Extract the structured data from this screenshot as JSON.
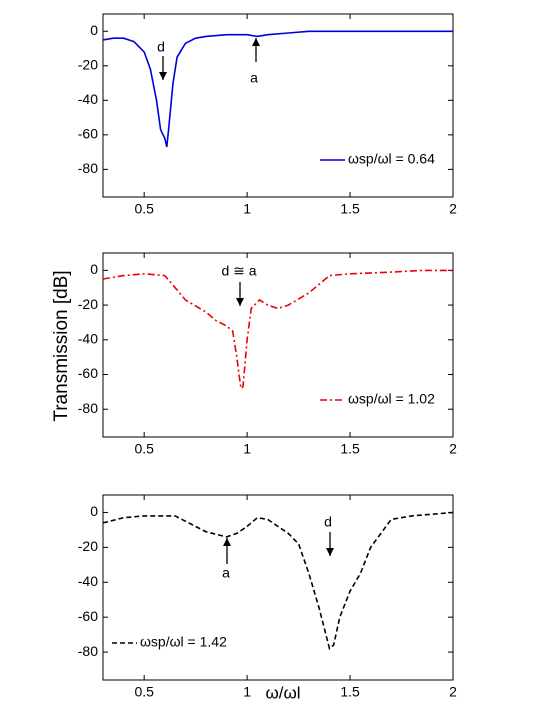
{
  "ylabel": "Transmission [dB]",
  "xlabel": "ω/ωl",
  "chart_data": [
    {
      "type": "line",
      "xlim": [
        0.3,
        2
      ],
      "ylim": [
        -96,
        10
      ],
      "xticks": [
        0.5,
        1,
        1.5,
        2
      ],
      "yticks": [
        -80,
        -60,
        -40,
        -20,
        0
      ],
      "legend": "lower right",
      "annotations": [
        {
          "text": "d"
        },
        {
          "text": "a"
        }
      ],
      "x": [
        0.3,
        0.35,
        0.4,
        0.45,
        0.5,
        0.53,
        0.56,
        0.58,
        0.6,
        0.61,
        0.62,
        0.64,
        0.66,
        0.7,
        0.75,
        0.8,
        0.9,
        1.0,
        1.05,
        1.1,
        1.2,
        1.3,
        1.5,
        1.6,
        2.0
      ],
      "series": [
        {
          "name": "ωsp/ωl =  0.64",
          "color": "#0000dd",
          "linestyle": "solid",
          "values": [
            -5,
            -4,
            -4,
            -6,
            -12,
            -22,
            -40,
            -57,
            -62,
            -67,
            -55,
            -30,
            -15,
            -7,
            -4,
            -3,
            -2,
            -2,
            -3,
            -2,
            -1,
            0,
            0,
            0,
            0
          ]
        }
      ]
    },
    {
      "type": "line",
      "xlim": [
        0.3,
        2
      ],
      "ylim": [
        -96,
        10
      ],
      "xticks": [
        0.5,
        1,
        1.5,
        2
      ],
      "yticks": [
        -80,
        -60,
        -40,
        -20,
        0
      ],
      "legend": "lower right",
      "annotations": [
        {
          "text": "d ≅ a"
        }
      ],
      "x": [
        0.3,
        0.4,
        0.5,
        0.6,
        0.65,
        0.7,
        0.8,
        0.85,
        0.9,
        0.93,
        0.95,
        0.97,
        0.98,
        1.0,
        1.02,
        1.06,
        1.1,
        1.15,
        1.2,
        1.3,
        1.4,
        1.5,
        1.7,
        1.85,
        2.0
      ],
      "series": [
        {
          "name": "ωsp/ωl =  1.02",
          "color": "#ee0000",
          "linestyle": "dashdot",
          "values": [
            -5,
            -3,
            -2,
            -3,
            -10,
            -17,
            -24,
            -29,
            -32,
            -35,
            -50,
            -68,
            -67,
            -40,
            -22,
            -17,
            -20,
            -22,
            -20,
            -13,
            -3,
            -2,
            -1,
            0,
            0
          ]
        }
      ]
    },
    {
      "type": "line",
      "xlim": [
        0.3,
        2
      ],
      "ylim": [
        -96,
        10
      ],
      "xticks": [
        0.5,
        1,
        1.5,
        2
      ],
      "yticks": [
        -80,
        -60,
        -40,
        -20,
        0
      ],
      "legend": "lower left",
      "annotations": [
        {
          "text": "a"
        },
        {
          "text": "d"
        }
      ],
      "x": [
        0.3,
        0.4,
        0.5,
        0.65,
        0.7,
        0.8,
        0.9,
        0.95,
        1.0,
        1.05,
        1.1,
        1.2,
        1.25,
        1.3,
        1.35,
        1.4,
        1.42,
        1.45,
        1.5,
        1.55,
        1.6,
        1.7,
        1.8,
        1.9,
        2.0
      ],
      "series": [
        {
          "name": "ωsp/ωl =  1.42",
          "color": "#000000",
          "linestyle": "dashed",
          "values": [
            -6,
            -3,
            -2,
            -2,
            -5,
            -11,
            -14,
            -12,
            -8,
            -3,
            -4,
            -12,
            -18,
            -35,
            -55,
            -78,
            -76,
            -60,
            -45,
            -35,
            -20,
            -4,
            -2,
            -1,
            0
          ]
        }
      ]
    }
  ]
}
